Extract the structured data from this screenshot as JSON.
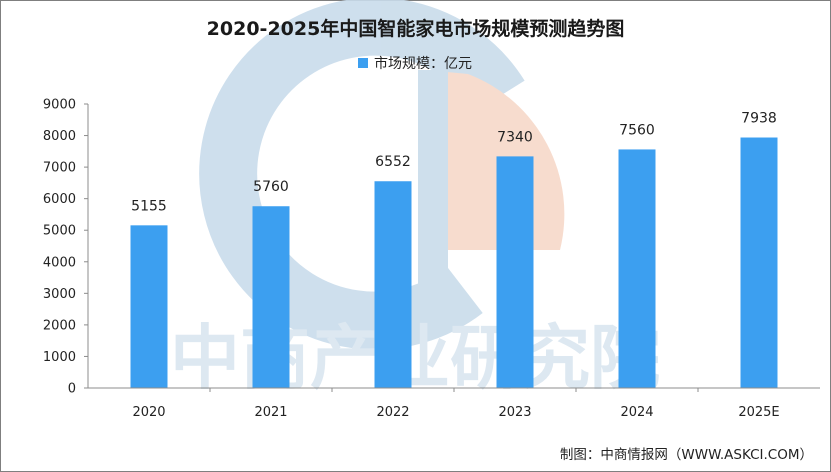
{
  "chart_data": {
    "type": "bar",
    "title": "2020-2025年中国智能家电市场规模预测趋势图",
    "categories": [
      "2020",
      "2021",
      "2022",
      "2023",
      "2024",
      "2025E"
    ],
    "series": [
      {
        "name": "市场规模：亿元",
        "values": [
          5155,
          5760,
          6552,
          7340,
          7560,
          7938
        ]
      }
    ],
    "data_labels": [
      "5155",
      "5760",
      "6552",
      "7340",
      "7560",
      "7938"
    ],
    "y_ticks": [
      "0",
      "1000",
      "2000",
      "3000",
      "4000",
      "5000",
      "6000",
      "7000",
      "8000",
      "9000"
    ],
    "ylim": [
      0,
      9000
    ],
    "xlabel": "",
    "ylabel": "",
    "grid": false,
    "legend_position": "top-center"
  },
  "colors": {
    "bar": "#3c9ff0",
    "axis": "#8c8c8c",
    "watermark_logo_blue": "#c9dceb",
    "watermark_logo_peach": "#f7d9c9",
    "watermark_text": "#dde8f1"
  },
  "watermark": "中商产业研究院",
  "source": "制图：中商情报网（WWW.ASKCI.COM）"
}
